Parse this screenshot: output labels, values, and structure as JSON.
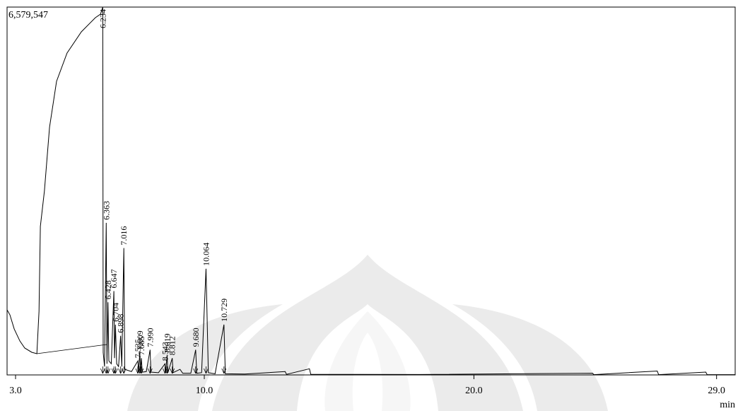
{
  "chart_data": {
    "type": "line",
    "x_label": "min",
    "color": "#000000",
    "xlim": [
      2.685,
      29.69
    ],
    "ylim": [
      0,
      6579547
    ],
    "xticks": [
      {
        "value": 3,
        "label": "3.0"
      },
      {
        "value": 10,
        "label": "10.0"
      },
      {
        "value": 20,
        "label": "20.0"
      },
      {
        "value": 29,
        "label": "29.0"
      }
    ],
    "yticks": [
      {
        "value": 6579547,
        "label": "6,579,547"
      }
    ],
    "x": [
      2.685,
      2.79,
      2.95,
      3.16,
      3.34,
      3.6,
      3.79,
      3.87,
      3.92,
      4.07,
      4.26,
      4.52,
      4.91,
      5.44,
      5.96,
      6.15,
      6.234,
      6.25,
      6.3,
      6.363,
      6.39,
      6.428,
      6.46,
      6.55,
      6.647,
      6.67,
      6.704,
      6.75,
      6.82,
      6.898,
      6.94,
      7.016,
      7.05,
      7.3,
      7.535,
      7.56,
      7.609,
      7.63,
      7.665,
      7.7,
      7.85,
      7.99,
      8.02,
      8.3,
      8.543,
      8.57,
      8.619,
      8.65,
      8.812,
      8.84,
      9.1,
      9.2,
      9.5,
      9.68,
      9.72,
      9.9,
      10.064,
      10.15,
      10.4,
      10.729,
      10.78,
      11.5,
      13.0,
      13.05,
      13.9,
      13.95,
      18,
      24.4,
      24.45,
      26.8,
      26.85,
      28.6,
      28.65,
      29.69
    ],
    "values": [
      1164000,
      1075000,
      822000,
      607000,
      481000,
      405000,
      380000,
      1139000,
      2657000,
      3290000,
      4429000,
      5251000,
      5757000,
      6137000,
      6390000,
      6453000,
      6579547,
      400000,
      150000,
      2720000,
      200000,
      1300000,
      250000,
      200000,
      1500000,
      300000,
      900000,
      200000,
      150000,
      700000,
      150000,
      2270000,
      100000,
      60000,
      250000,
      60000,
      400000,
      60000,
      300000,
      50000,
      60000,
      450000,
      50000,
      40000,
      200000,
      40000,
      350000,
      40000,
      300000,
      40000,
      100000,
      30000,
      30000,
      450000,
      30000,
      40000,
      1900000,
      40000,
      20000,
      900000,
      20000,
      15000,
      60000,
      10000,
      110000,
      10000,
      8000,
      30000,
      5000,
      70000,
      5000,
      50000,
      5000,
      5000
    ],
    "peaks": [
      {
        "value": 6.234,
        "label": "6.234"
      },
      {
        "value": 6.363,
        "label": "6.363"
      },
      {
        "value": 6.428,
        "label": "6.428"
      },
      {
        "value": 6.647,
        "label": "6.647"
      },
      {
        "value": 6.704,
        "label": "6.704"
      },
      {
        "value": 6.898,
        "label": "6.898"
      },
      {
        "value": 7.016,
        "label": "7.016"
      },
      {
        "value": 7.535,
        "label": "7.535"
      },
      {
        "value": 7.609,
        "label": "7.609"
      },
      {
        "value": 7.665,
        "label": "7.665"
      },
      {
        "value": 7.99,
        "label": "7.990"
      },
      {
        "value": 8.543,
        "label": "8.543"
      },
      {
        "value": 8.619,
        "label": "8.619"
      },
      {
        "value": 8.812,
        "label": "8.812"
      },
      {
        "value": 9.68,
        "label": "9.680"
      },
      {
        "value": 10.064,
        "label": "10.064"
      },
      {
        "value": 10.729,
        "label": "10.729"
      }
    ]
  }
}
